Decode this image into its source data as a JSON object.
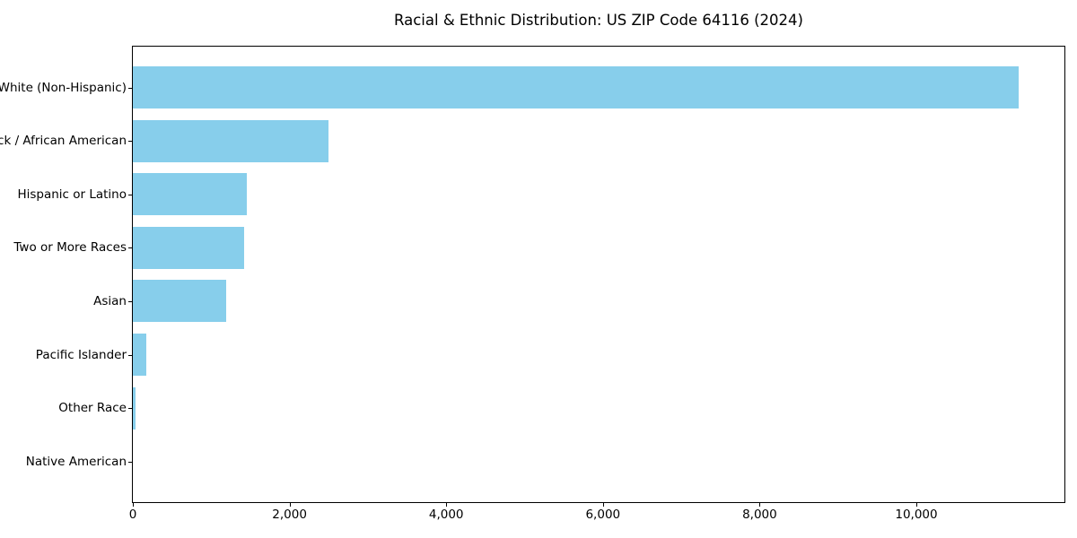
{
  "chart_data": {
    "type": "bar",
    "orientation": "horizontal",
    "title": "Racial & Ethnic Distribution: US ZIP Code 64116 (2024)",
    "categories": [
      "White (Non-Hispanic)",
      "Black / African American",
      "Hispanic or Latino",
      "Two or More Races",
      "Asian",
      "Pacific Islander",
      "Other Race",
      "Native American"
    ],
    "values": [
      11300,
      2500,
      1450,
      1420,
      1190,
      175,
      35,
      0
    ],
    "xlabel": "",
    "ylabel": "",
    "xlim": [
      0,
      11890
    ],
    "xticks": [
      0,
      2000,
      4000,
      6000,
      8000,
      10000
    ],
    "xtick_labels": [
      "0",
      "2,000",
      "4,000",
      "6,000",
      "8,000",
      "10,000"
    ],
    "bar_color": "#87CEEB",
    "axis_color": "#000000",
    "background_color": "#ffffff",
    "grid": false,
    "legend": null
  }
}
